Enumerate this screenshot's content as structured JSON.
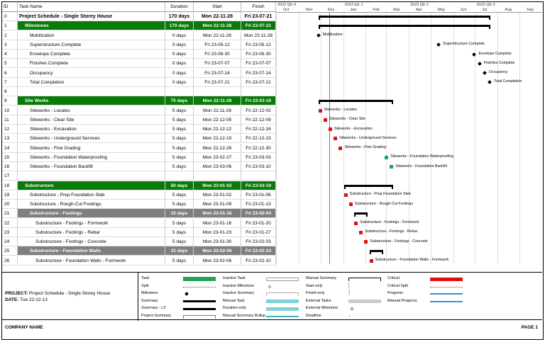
{
  "headers": {
    "id": "ID",
    "name": "Task Name",
    "duration": "Duration",
    "start": "Start",
    "finish": "Finish"
  },
  "timescale": {
    "quarters": [
      "2022 Qtr 4",
      "2023 Qtr 1",
      "2023 Qtr 2",
      "2023 Qtr 3"
    ],
    "months": [
      "Oct",
      "Nov",
      "Dec",
      "Jan",
      "Feb",
      "Mar",
      "Apr",
      "May",
      "Jun",
      "Jul",
      "Aug",
      "Sep"
    ]
  },
  "tasks": [
    {
      "id": "0",
      "name": "Project Schedule - Single Storey House",
      "duration": "170 days",
      "start": "Mon 22-11-28",
      "finish": "Fri 23-07-21",
      "kind": "project",
      "indent": 0
    },
    {
      "id": "1",
      "name": "Milestones",
      "duration": "170 days",
      "start": "Mon 22-11-28",
      "finish": "Fri 23-07-21",
      "kind": "sum-green",
      "indent": 1
    },
    {
      "id": "2",
      "name": "Mobilization",
      "duration": "0 days",
      "start": "Mon 22-11-28",
      "finish": "Mon 22-11-28",
      "kind": "task",
      "indent": 2
    },
    {
      "id": "3",
      "name": "Superstructure Complete",
      "duration": "0 days",
      "start": "Fri 23-05-12",
      "finish": "Fri 23-05-12",
      "kind": "task",
      "indent": 2
    },
    {
      "id": "4",
      "name": "Envelope Complete",
      "duration": "0 days",
      "start": "Fri 23-06-30",
      "finish": "Fri 23-06-30",
      "kind": "task",
      "indent": 2
    },
    {
      "id": "5",
      "name": "Finishes Complete",
      "duration": "0 days",
      "start": "Fri 23-07-07",
      "finish": "Fri 23-07-07",
      "kind": "task",
      "indent": 2
    },
    {
      "id": "6",
      "name": "Occupancy",
      "duration": "0 days",
      "start": "Fri 23-07-14",
      "finish": "Fri 23-07-14",
      "kind": "task",
      "indent": 2
    },
    {
      "id": "7",
      "name": "Total Completion",
      "duration": "0 days",
      "start": "Fri 23-07-21",
      "finish": "Fri 23-07-21",
      "kind": "task",
      "indent": 2
    },
    {
      "id": "8",
      "name": "",
      "duration": "",
      "start": "",
      "finish": "",
      "kind": "blank",
      "indent": 0
    },
    {
      "id": "9",
      "name": "Site Works",
      "duration": "75 days",
      "start": "Mon 22-11-28",
      "finish": "Fri 23-03-10",
      "kind": "sum-green",
      "indent": 1
    },
    {
      "id": "10",
      "name": "Siteworks - Locates",
      "duration": "5 days",
      "start": "Mon 22-11-28",
      "finish": "Fri 22-12-02",
      "kind": "task",
      "indent": 2
    },
    {
      "id": "11",
      "name": "Siteworks - Clear Site",
      "duration": "5 days",
      "start": "Mon 22-12-05",
      "finish": "Fri 22-12-09",
      "kind": "task",
      "indent": 2
    },
    {
      "id": "12",
      "name": "Siteworks - Excavation",
      "duration": "5 days",
      "start": "Mon 22-12-12",
      "finish": "Fri 22-12-16",
      "kind": "task",
      "indent": 2
    },
    {
      "id": "13",
      "name": "Siteworks - Underground Services",
      "duration": "5 days",
      "start": "Mon 22-12-19",
      "finish": "Fri 22-12-23",
      "kind": "task",
      "indent": 2
    },
    {
      "id": "14",
      "name": "Siteworks - Fine Grading",
      "duration": "5 days",
      "start": "Mon 22-12-26",
      "finish": "Fri 22-12-30",
      "kind": "task",
      "indent": 2
    },
    {
      "id": "15",
      "name": "Siteworks - Foundation Waterproofing",
      "duration": "5 days",
      "start": "Mon 23-02-27",
      "finish": "Fri 23-03-03",
      "kind": "task",
      "indent": 2
    },
    {
      "id": "16",
      "name": "Siteworks - Foundation Backfill",
      "duration": "5 days",
      "start": "Mon 23-03-06",
      "finish": "Fri 23-03-10",
      "kind": "task",
      "indent": 2
    },
    {
      "id": "17",
      "name": "",
      "duration": "",
      "start": "",
      "finish": "",
      "kind": "blank",
      "indent": 0
    },
    {
      "id": "18",
      "name": "Substructure",
      "duration": "50 days",
      "start": "Mon 23-01-02",
      "finish": "Fri 23-03-10",
      "kind": "sum-green",
      "indent": 1
    },
    {
      "id": "19",
      "name": "Substructure - Prep Foundation Slab",
      "duration": "5 days",
      "start": "Mon 23-01-02",
      "finish": "Fri 23-01-06",
      "kind": "task",
      "indent": 2
    },
    {
      "id": "20",
      "name": "Substructure - Rough-Cut Footings",
      "duration": "5 days",
      "start": "Mon 23-01-09",
      "finish": "Fri 23-01-13",
      "kind": "task",
      "indent": 2
    },
    {
      "id": "21",
      "name": "Substructure - Footings",
      "duration": "15 days",
      "start": "Mon 23-01-16",
      "finish": "Fri 23-02-03",
      "kind": "sum-gray",
      "indent": 2
    },
    {
      "id": "22",
      "name": "Substructure - Footings - Formwork",
      "duration": "5 days",
      "start": "Mon 23-01-16",
      "finish": "Fri 23-01-20",
      "kind": "task",
      "indent": 3
    },
    {
      "id": "23",
      "name": "Substructure - Footings - Rebar",
      "duration": "5 days",
      "start": "Mon 23-01-23",
      "finish": "Fri 23-01-27",
      "kind": "task",
      "indent": 3
    },
    {
      "id": "24",
      "name": "Substructure - Footings - Concrete",
      "duration": "5 days",
      "start": "Mon 23-01-30",
      "finish": "Fri 23-02-03",
      "kind": "task",
      "indent": 3
    },
    {
      "id": "25",
      "name": "Substructure - Foundation Walls",
      "duration": "15 days",
      "start": "Mon 23-02-06",
      "finish": "Fri 23-02-24",
      "kind": "sum-gray",
      "indent": 2
    },
    {
      "id": "26",
      "name": "Substructure - Foundation Walls - Formwork",
      "duration": "5 days",
      "start": "Mon 23-02-06",
      "finish": "Fri 23-02-10",
      "kind": "task",
      "indent": 3
    }
  ],
  "gantt_labels": [
    {
      "row": 2,
      "text": "Mobilization",
      "type": "milestone"
    },
    {
      "row": 3,
      "text": "Superstructure Complete",
      "type": "milestone"
    },
    {
      "row": 4,
      "text": "Envelope Complete",
      "type": "milestone"
    },
    {
      "row": 5,
      "text": "Finishes Complete",
      "type": "milestone"
    },
    {
      "row": 6,
      "text": "Occupancy",
      "type": "milestone"
    },
    {
      "row": 7,
      "text": "Total Completion",
      "type": "milestone"
    },
    {
      "row": 10,
      "text": "Siteworks - Locates",
      "type": "critical"
    },
    {
      "row": 11,
      "text": "Siteworks - Clear Site",
      "type": "critical"
    },
    {
      "row": 12,
      "text": "Siteworks - Excavation",
      "type": "critical"
    },
    {
      "row": 13,
      "text": "Siteworks - Underground Services",
      "type": "critical"
    },
    {
      "row": 14,
      "text": "Siteworks - Fine Grading",
      "type": "critical"
    },
    {
      "row": 15,
      "text": "Siteworks - Foundation Waterproofing",
      "type": "task"
    },
    {
      "row": 16,
      "text": "Siteworks - Foundation Backfill",
      "type": "task"
    },
    {
      "row": 19,
      "text": "Substructure - Prep Foundation Slab",
      "type": "critical"
    },
    {
      "row": 20,
      "text": "Substructure - Rough-Cut Footings",
      "type": "critical"
    },
    {
      "row": 22,
      "text": "Substructure - Footings - Formwork",
      "type": "critical"
    },
    {
      "row": 23,
      "text": "Substructure - Footings - Rebar",
      "type": "critical"
    },
    {
      "row": 24,
      "text": "Substructure - Footings - Concrete",
      "type": "critical"
    },
    {
      "row": 26,
      "text": "Substructure - Foundation Walls - Formwork",
      "type": "critical"
    }
  ],
  "legend": {
    "col1": [
      "Task",
      "Split",
      "Milestone",
      "Summary",
      "Summary - L2",
      "Project Summary"
    ],
    "col2": [
      "Inactive Task",
      "Inactive Milestone",
      "Inactive Summary",
      "Manual Task",
      "Duration-only",
      "Manual Summary Rollup"
    ],
    "col3": [
      "Manual Summary",
      "Start-only",
      "Finish-only",
      "External Tasks",
      "External Milestone",
      "Deadline"
    ],
    "col4": [
      "Critical",
      "Critical Split",
      "Progress",
      "Manual Progress"
    ]
  },
  "project_info": {
    "project_label": "PROJECT:",
    "project_value": "Project Schedule - Single Storey House",
    "date_label": "DATE:",
    "date_value": "Tue 22-12-13"
  },
  "footer": {
    "company": "COMPANY NAME",
    "page": "PAGE 1"
  },
  "colors": {
    "green": "#0a7a0a",
    "gray": "#7f7f7f",
    "critical": "#e01010",
    "task_green": "#22a35a",
    "today_line": "#e05050"
  }
}
